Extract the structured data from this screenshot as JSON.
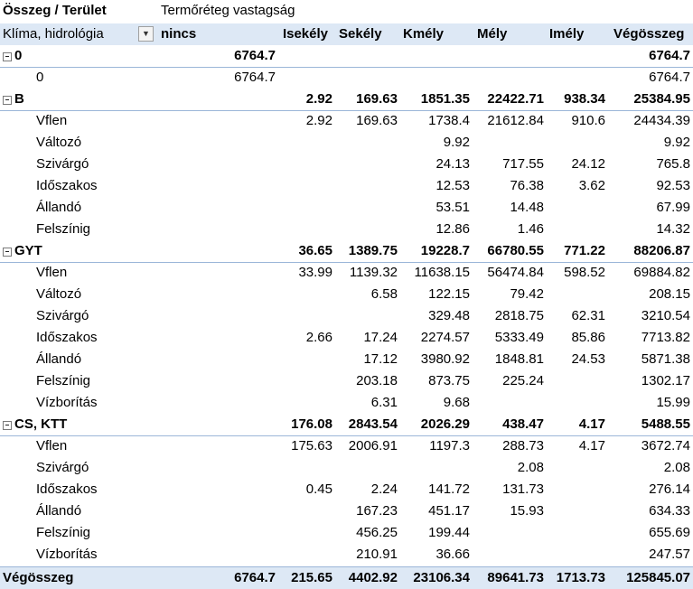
{
  "header": {
    "title": "Összeg / Terület",
    "column_field": "Termőréteg vastagság",
    "row_field": "Klíma, hidrológia",
    "columns": [
      "nincs",
      "Isekély",
      "Sekély",
      "Kmély",
      "Mély",
      "Imély",
      "Végösszeg"
    ]
  },
  "groups": [
    {
      "label": "0",
      "total": [
        "6764.7",
        "",
        "",
        "",
        "",
        "",
        "6764.7"
      ],
      "rows": [
        {
          "label": "0",
          "values": [
            "6764.7",
            "",
            "",
            "",
            "",
            "",
            "6764.7"
          ]
        }
      ]
    },
    {
      "label": "B",
      "total": [
        "",
        "2.92",
        "169.63",
        "1851.35",
        "22422.71",
        "938.34",
        "25384.95"
      ],
      "rows": [
        {
          "label": "Vflen",
          "values": [
            "",
            "2.92",
            "169.63",
            "1738.4",
            "21612.84",
            "910.6",
            "24434.39"
          ]
        },
        {
          "label": "Változó",
          "values": [
            "",
            "",
            "",
            "9.92",
            "",
            "",
            "9.92"
          ]
        },
        {
          "label": "Szivárgó",
          "values": [
            "",
            "",
            "",
            "24.13",
            "717.55",
            "24.12",
            "765.8"
          ]
        },
        {
          "label": "Időszakos",
          "values": [
            "",
            "",
            "",
            "12.53",
            "76.38",
            "3.62",
            "92.53"
          ]
        },
        {
          "label": "Állandó",
          "values": [
            "",
            "",
            "",
            "53.51",
            "14.48",
            "",
            "67.99"
          ]
        },
        {
          "label": "Felszínig",
          "values": [
            "",
            "",
            "",
            "12.86",
            "1.46",
            "",
            "14.32"
          ]
        }
      ]
    },
    {
      "label": "GYT",
      "total": [
        "",
        "36.65",
        "1389.75",
        "19228.7",
        "66780.55",
        "771.22",
        "88206.87"
      ],
      "rows": [
        {
          "label": "Vflen",
          "values": [
            "",
            "33.99",
            "1139.32",
            "11638.15",
            "56474.84",
            "598.52",
            "69884.82"
          ]
        },
        {
          "label": "Változó",
          "values": [
            "",
            "",
            "6.58",
            "122.15",
            "79.42",
            "",
            "208.15"
          ]
        },
        {
          "label": "Szivárgó",
          "values": [
            "",
            "",
            "",
            "329.48",
            "2818.75",
            "62.31",
            "3210.54"
          ]
        },
        {
          "label": "Időszakos",
          "values": [
            "",
            "2.66",
            "17.24",
            "2274.57",
            "5333.49",
            "85.86",
            "7713.82"
          ]
        },
        {
          "label": "Állandó",
          "values": [
            "",
            "",
            "17.12",
            "3980.92",
            "1848.81",
            "24.53",
            "5871.38"
          ]
        },
        {
          "label": "Felszínig",
          "values": [
            "",
            "",
            "203.18",
            "873.75",
            "225.24",
            "",
            "1302.17"
          ]
        },
        {
          "label": "Vízborítás",
          "values": [
            "",
            "",
            "6.31",
            "9.68",
            "",
            "",
            "15.99"
          ]
        }
      ]
    },
    {
      "label": "CS, KTT",
      "total": [
        "",
        "176.08",
        "2843.54",
        "2026.29",
        "438.47",
        "4.17",
        "5488.55"
      ],
      "rows": [
        {
          "label": "Vflen",
          "values": [
            "",
            "175.63",
            "2006.91",
            "1197.3",
            "288.73",
            "4.17",
            "3672.74"
          ]
        },
        {
          "label": "Szivárgó",
          "values": [
            "",
            "",
            "",
            "",
            "2.08",
            "",
            "2.08"
          ]
        },
        {
          "label": "Időszakos",
          "values": [
            "",
            "0.45",
            "2.24",
            "141.72",
            "131.73",
            "",
            "276.14"
          ]
        },
        {
          "label": "Állandó",
          "values": [
            "",
            "",
            "167.23",
            "451.17",
            "15.93",
            "",
            "634.33"
          ]
        },
        {
          "label": "Felszínig",
          "values": [
            "",
            "",
            "456.25",
            "199.44",
            "",
            "",
            "655.69"
          ]
        },
        {
          "label": "Vízborítás",
          "values": [
            "",
            "",
            "210.91",
            "36.66",
            "",
            "",
            "247.57"
          ]
        }
      ]
    }
  ],
  "grand_total": {
    "label": "Végösszeg",
    "values": [
      "6764.7",
      "215.65",
      "4402.92",
      "23106.34",
      "89641.73",
      "1713.73",
      "125845.07"
    ]
  },
  "colors": {
    "header_band": "#dde8f5",
    "header_border": "#9bb6d8"
  }
}
